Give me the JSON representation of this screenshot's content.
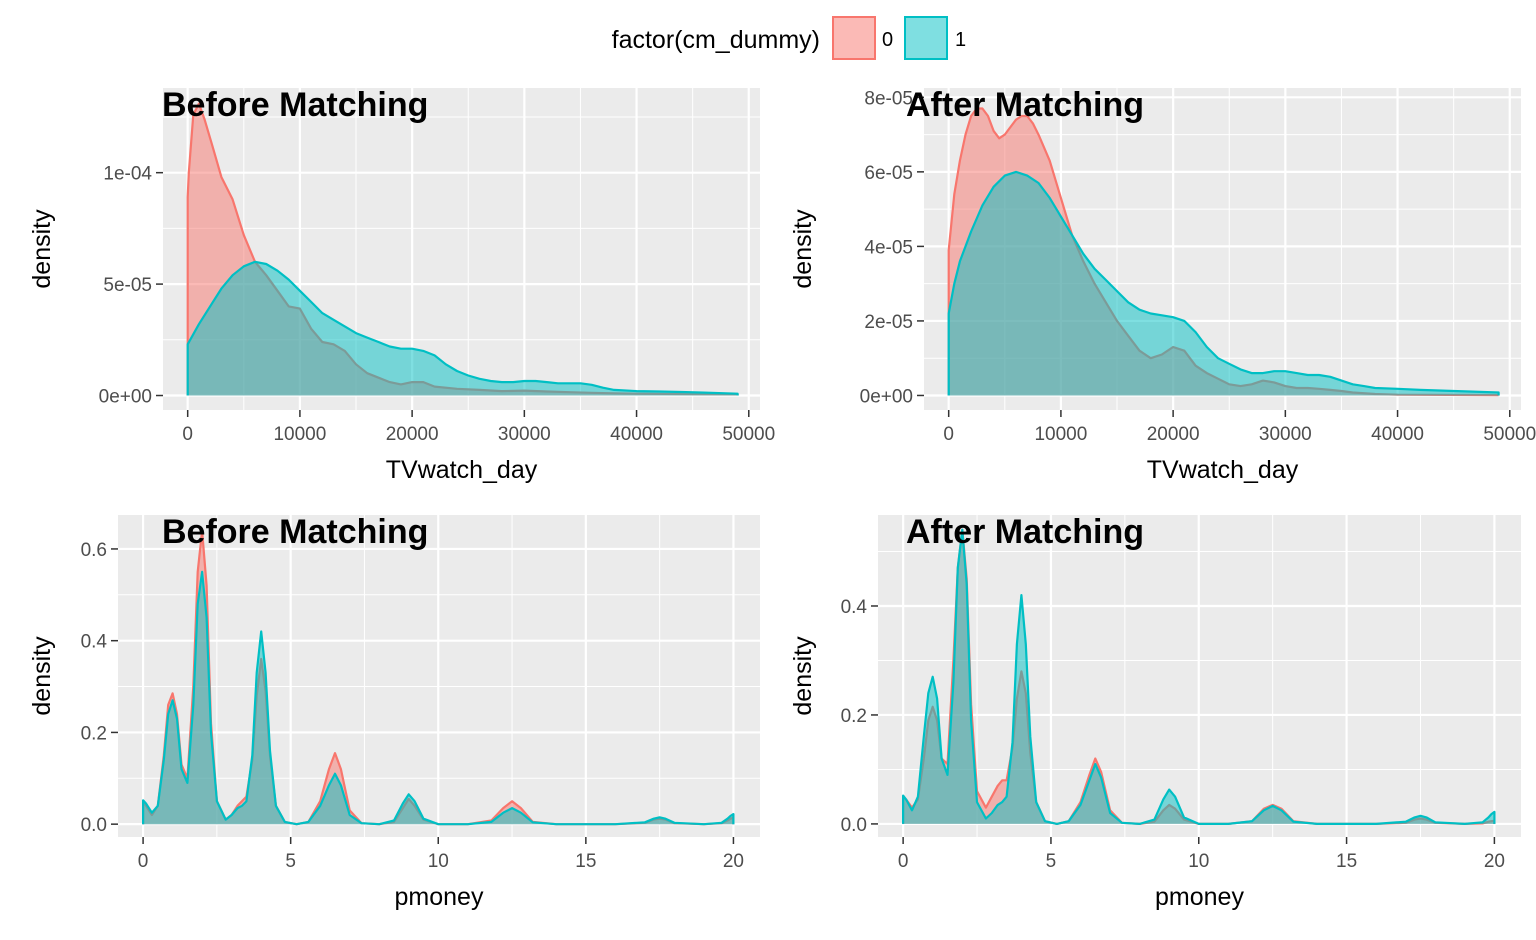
{
  "legend": {
    "title": "factor(cm_dummy)",
    "position": "top",
    "entries": [
      {
        "label": "0",
        "line": "#F8766D",
        "fill": "#F8766D"
      },
      {
        "label": "1",
        "line": "#00BFC4",
        "fill": "#00BFC4"
      }
    ]
  },
  "style": {
    "panel_bg": "#EBEBEB",
    "grid_color": "#FFFFFF",
    "fill_opacity": 0.5
  },
  "chart_data": [
    {
      "type": "area",
      "title": "Before Matching",
      "xlabel": "TVwatch_day",
      "ylabel": "density",
      "xlim": [
        -2200,
        51000
      ],
      "ylim": [
        -6500,
        138000
      ],
      "y_unit": "1e-9",
      "x_ticks": [
        0,
        10000,
        20000,
        30000,
        40000,
        50000
      ],
      "x_tick_labels": [
        "0",
        "10000",
        "20000",
        "30000",
        "40000",
        "50000"
      ],
      "y_ticks": [
        0,
        50000,
        100000
      ],
      "y_tick_labels": [
        "0e+00",
        "5e-05",
        "1e-04"
      ],
      "grid": true,
      "series": [
        {
          "name": "0",
          "x": [
            0,
            100,
            500,
            1000,
            1500,
            2200,
            3000,
            4000,
            5000,
            6000,
            6500,
            7000,
            8000,
            9000,
            10000,
            11000,
            12000,
            13000,
            14000,
            15000,
            16000,
            17000,
            18000,
            19000,
            20000,
            21000,
            22000,
            24000,
            26000,
            28000,
            30000,
            32000,
            34000,
            36000,
            38000,
            40000,
            45000,
            49000
          ],
          "y": [
            89000,
            100000,
            126000,
            131000,
            124000,
            112000,
            98000,
            88000,
            72000,
            60000,
            57000,
            54000,
            47000,
            40000,
            39000,
            30000,
            24000,
            23000,
            20000,
            14000,
            10000,
            8000,
            6000,
            5000,
            6000,
            6000,
            4000,
            3000,
            2500,
            2000,
            2200,
            1800,
            1500,
            1200,
            1000,
            800,
            600,
            500
          ]
        },
        {
          "name": "1",
          "x": [
            0,
            1000,
            2000,
            3000,
            4000,
            5000,
            6000,
            7000,
            8000,
            9000,
            10000,
            11000,
            12000,
            13000,
            14000,
            15000,
            16000,
            17000,
            18000,
            19000,
            20000,
            21000,
            22000,
            23000,
            24000,
            25000,
            26000,
            27000,
            28000,
            29000,
            30000,
            31000,
            32000,
            33000,
            34000,
            35000,
            36000,
            37000,
            38000,
            40000,
            42000,
            44000,
            46000,
            48000,
            49000
          ],
          "y": [
            23000,
            32000,
            40000,
            48000,
            54000,
            58000,
            60000,
            59000,
            56000,
            52000,
            47000,
            42000,
            37000,
            34000,
            31000,
            28000,
            26000,
            24000,
            22000,
            21000,
            21000,
            20000,
            18000,
            14000,
            11000,
            9000,
            7500,
            6500,
            6000,
            6000,
            6500,
            6500,
            6000,
            5500,
            5500,
            5500,
            4800,
            3500,
            2500,
            2000,
            1800,
            1600,
            1300,
            1000,
            800
          ]
        }
      ]
    },
    {
      "type": "area",
      "title": "After Matching",
      "xlabel": "TVwatch_day",
      "ylabel": "density",
      "xlim": [
        -2200,
        51000
      ],
      "ylim": [
        -3900,
        82500
      ],
      "y_unit": "1e-9",
      "x_ticks": [
        0,
        10000,
        20000,
        30000,
        40000,
        50000
      ],
      "x_tick_labels": [
        "0",
        "10000",
        "20000",
        "30000",
        "40000",
        "50000"
      ],
      "y_ticks": [
        0,
        20000,
        40000,
        60000,
        80000
      ],
      "y_tick_labels": [
        "0e+00",
        "2e-05",
        "4e-05",
        "6e-05",
        "8e-05"
      ],
      "grid": true,
      "series": [
        {
          "name": "0",
          "x": [
            0,
            500,
            1000,
            1500,
            2000,
            2500,
            3000,
            3500,
            4000,
            4500,
            5000,
            5500,
            6000,
            6500,
            7000,
            7500,
            8000,
            9000,
            10000,
            11000,
            12000,
            13000,
            14000,
            15000,
            16000,
            17000,
            18000,
            19000,
            20000,
            21000,
            22000,
            23000,
            24000,
            25000,
            26000,
            27000,
            28000,
            29000,
            30000,
            31000,
            32000,
            33000,
            34000,
            35000,
            36000,
            38000,
            40000,
            49000
          ],
          "y": [
            39000,
            54000,
            63000,
            70000,
            75000,
            77000,
            77000,
            75000,
            71000,
            69000,
            70000,
            72000,
            74000,
            75000,
            75000,
            73000,
            70000,
            63000,
            53000,
            43000,
            36000,
            30000,
            25000,
            20000,
            16000,
            12000,
            10000,
            11000,
            13000,
            12000,
            8000,
            6000,
            4500,
            3000,
            2500,
            3000,
            4000,
            3500,
            2500,
            2000,
            2000,
            1800,
            1500,
            1200,
            800,
            400,
            200,
            100
          ]
        },
        {
          "name": "1",
          "x": [
            0,
            500,
            1000,
            2000,
            3000,
            4000,
            5000,
            6000,
            7000,
            8000,
            9000,
            10000,
            11000,
            12000,
            13000,
            14000,
            15000,
            16000,
            17000,
            18000,
            19000,
            20000,
            21000,
            22000,
            23000,
            24000,
            25000,
            26000,
            27000,
            28000,
            29000,
            30000,
            31000,
            32000,
            33000,
            34000,
            35000,
            36000,
            37000,
            38000,
            40000,
            42000,
            44000,
            46000,
            48000,
            49000
          ],
          "y": [
            22000,
            30000,
            36000,
            44000,
            51000,
            56000,
            59000,
            60000,
            59000,
            57000,
            53000,
            48000,
            43000,
            38000,
            34000,
            31000,
            28000,
            25000,
            23000,
            22000,
            21500,
            21000,
            20000,
            17000,
            13000,
            10000,
            8500,
            7000,
            6000,
            6000,
            6500,
            6500,
            6000,
            5500,
            5500,
            5000,
            4000,
            3000,
            2500,
            2000,
            1800,
            1500,
            1300,
            1100,
            900,
            800
          ]
        }
      ]
    },
    {
      "type": "area",
      "title": "Before Matching",
      "xlabel": "pmoney",
      "ylabel": "density",
      "xlim": [
        -0.85,
        20.9
      ],
      "ylim": [
        -0.028,
        0.674
      ],
      "x_ticks": [
        0,
        5,
        10,
        15,
        20
      ],
      "x_tick_labels": [
        "0",
        "5",
        "10",
        "15",
        "20"
      ],
      "y_ticks": [
        0.0,
        0.2,
        0.4,
        0.6
      ],
      "y_tick_labels": [
        "0.0",
        "0.2",
        "0.4",
        "0.6"
      ],
      "grid": true,
      "series": [
        {
          "name": "0",
          "x": [
            0,
            0.1,
            0.3,
            0.5,
            0.7,
            0.85,
            1.0,
            1.15,
            1.3,
            1.5,
            1.7,
            1.85,
            2.0,
            2.15,
            2.3,
            2.5,
            2.8,
            3.0,
            3.2,
            3.35,
            3.5,
            3.7,
            3.85,
            4.0,
            4.15,
            4.3,
            4.5,
            4.8,
            5.2,
            5.6,
            6.0,
            6.3,
            6.5,
            6.7,
            7.0,
            7.4,
            8.0,
            8.5,
            8.8,
            9.0,
            9.2,
            9.5,
            10.0,
            11.0,
            11.8,
            12.2,
            12.5,
            12.8,
            13.2,
            14.0,
            16.0,
            17.0,
            17.3,
            17.5,
            17.7,
            18.0,
            19.0,
            19.6,
            19.8,
            19.9,
            20.0
          ],
          "y": [
            0.05,
            0.04,
            0.02,
            0.04,
            0.15,
            0.26,
            0.285,
            0.24,
            0.13,
            0.1,
            0.3,
            0.55,
            0.64,
            0.52,
            0.22,
            0.05,
            0.01,
            0.02,
            0.04,
            0.05,
            0.06,
            0.14,
            0.28,
            0.36,
            0.29,
            0.15,
            0.04,
            0.005,
            0.0,
            0.005,
            0.05,
            0.12,
            0.155,
            0.12,
            0.03,
            0.002,
            0.0,
            0.005,
            0.035,
            0.055,
            0.04,
            0.01,
            0.0,
            0.0,
            0.008,
            0.035,
            0.05,
            0.035,
            0.005,
            0.0,
            0.0,
            0.003,
            0.01,
            0.012,
            0.01,
            0.002,
            0.0,
            0.002,
            0.008,
            0.012,
            0.015
          ]
        },
        {
          "name": "1",
          "x": [
            0,
            0.1,
            0.3,
            0.5,
            0.7,
            0.85,
            1.0,
            1.15,
            1.3,
            1.5,
            1.7,
            1.85,
            2.0,
            2.15,
            2.3,
            2.5,
            2.8,
            3.0,
            3.2,
            3.35,
            3.5,
            3.7,
            3.85,
            4.0,
            4.15,
            4.3,
            4.5,
            4.8,
            5.2,
            5.6,
            6.0,
            6.3,
            6.5,
            6.7,
            7.0,
            7.4,
            8.0,
            8.5,
            8.8,
            9.0,
            9.2,
            9.5,
            10.0,
            11.0,
            11.8,
            12.2,
            12.5,
            12.8,
            13.2,
            14.0,
            16.0,
            17.0,
            17.3,
            17.5,
            17.7,
            18.0,
            19.0,
            19.6,
            19.8,
            19.9,
            20.0
          ],
          "y": [
            0.052,
            0.045,
            0.025,
            0.04,
            0.14,
            0.24,
            0.27,
            0.23,
            0.12,
            0.09,
            0.26,
            0.48,
            0.55,
            0.45,
            0.2,
            0.05,
            0.01,
            0.02,
            0.035,
            0.04,
            0.05,
            0.15,
            0.33,
            0.42,
            0.33,
            0.16,
            0.04,
            0.005,
            0.0,
            0.005,
            0.04,
            0.085,
            0.11,
            0.085,
            0.02,
            0.002,
            0.0,
            0.008,
            0.045,
            0.065,
            0.05,
            0.012,
            0.0,
            0.0,
            0.005,
            0.025,
            0.035,
            0.025,
            0.004,
            0.0,
            0.0,
            0.004,
            0.012,
            0.015,
            0.012,
            0.003,
            0.0,
            0.003,
            0.012,
            0.018,
            0.022
          ]
        }
      ]
    },
    {
      "type": "area",
      "title": "After Matching",
      "xlabel": "pmoney",
      "ylabel": "density",
      "xlim": [
        -0.85,
        20.9
      ],
      "ylim": [
        -0.024,
        0.567
      ],
      "x_ticks": [
        0,
        5,
        10,
        15,
        20
      ],
      "x_tick_labels": [
        "0",
        "5",
        "10",
        "15",
        "20"
      ],
      "y_ticks": [
        0.0,
        0.2,
        0.4
      ],
      "y_tick_labels": [
        "0.0",
        "0.2",
        "0.4"
      ],
      "grid": true,
      "series": [
        {
          "name": "0",
          "x": [
            0,
            0.1,
            0.3,
            0.5,
            0.7,
            0.85,
            1.0,
            1.15,
            1.3,
            1.5,
            1.7,
            1.85,
            2.0,
            2.15,
            2.3,
            2.5,
            2.8,
            3.0,
            3.2,
            3.35,
            3.5,
            3.7,
            3.85,
            4.0,
            4.15,
            4.3,
            4.5,
            4.8,
            5.2,
            5.6,
            6.0,
            6.3,
            6.5,
            6.7,
            7.0,
            7.4,
            8.0,
            8.5,
            8.8,
            9.0,
            9.2,
            9.5,
            10.0,
            11.0,
            11.8,
            12.2,
            12.5,
            12.8,
            13.2,
            14.0,
            16.0,
            17.0,
            17.3,
            17.5,
            17.7,
            18.0,
            19.0,
            19.6,
            19.8,
            19.9,
            20.0
          ],
          "y": [
            0.05,
            0.045,
            0.03,
            0.045,
            0.12,
            0.19,
            0.215,
            0.19,
            0.12,
            0.11,
            0.3,
            0.47,
            0.54,
            0.45,
            0.22,
            0.06,
            0.03,
            0.05,
            0.07,
            0.08,
            0.08,
            0.14,
            0.23,
            0.28,
            0.24,
            0.13,
            0.04,
            0.005,
            0.0,
            0.005,
            0.04,
            0.09,
            0.12,
            0.095,
            0.025,
            0.002,
            0.0,
            0.004,
            0.025,
            0.035,
            0.028,
            0.008,
            0.0,
            0.0,
            0.005,
            0.028,
            0.035,
            0.028,
            0.005,
            0.0,
            0.0,
            0.002,
            0.008,
            0.01,
            0.008,
            0.002,
            0.0,
            0.001,
            0.004,
            0.005,
            0.006
          ]
        },
        {
          "name": "1",
          "x": [
            0,
            0.1,
            0.3,
            0.5,
            0.7,
            0.85,
            1.0,
            1.15,
            1.3,
            1.5,
            1.7,
            1.85,
            2.0,
            2.15,
            2.3,
            2.5,
            2.8,
            3.0,
            3.2,
            3.35,
            3.5,
            3.7,
            3.85,
            4.0,
            4.15,
            4.3,
            4.5,
            4.8,
            5.2,
            5.6,
            6.0,
            6.3,
            6.5,
            6.7,
            7.0,
            7.4,
            8.0,
            8.5,
            8.8,
            9.0,
            9.2,
            9.5,
            10.0,
            11.0,
            11.8,
            12.2,
            12.5,
            12.8,
            13.2,
            14.0,
            16.0,
            17.0,
            17.3,
            17.5,
            17.7,
            18.0,
            19.0,
            19.6,
            19.8,
            19.9,
            20.0
          ],
          "y": [
            0.052,
            0.045,
            0.025,
            0.05,
            0.16,
            0.24,
            0.27,
            0.23,
            0.12,
            0.09,
            0.26,
            0.47,
            0.54,
            0.44,
            0.19,
            0.04,
            0.01,
            0.02,
            0.035,
            0.04,
            0.05,
            0.15,
            0.33,
            0.42,
            0.33,
            0.16,
            0.04,
            0.005,
            0.0,
            0.005,
            0.035,
            0.08,
            0.11,
            0.085,
            0.02,
            0.002,
            0.0,
            0.008,
            0.045,
            0.063,
            0.05,
            0.012,
            0.0,
            0.0,
            0.005,
            0.025,
            0.033,
            0.025,
            0.004,
            0.0,
            0.0,
            0.004,
            0.012,
            0.015,
            0.012,
            0.003,
            0.0,
            0.003,
            0.012,
            0.018,
            0.022
          ]
        }
      ]
    }
  ]
}
